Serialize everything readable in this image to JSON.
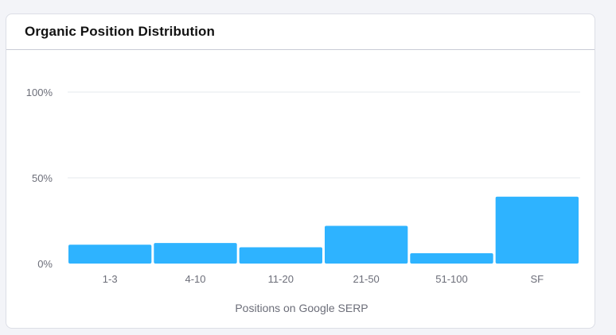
{
  "widget": {
    "title": "Organic Position Distribution"
  },
  "colors": {
    "bar": "#2eb3ff",
    "grid": "#e6e8ee",
    "tick_text": "#6c6e79",
    "axis_text": "#6c6e79"
  },
  "chart_data": {
    "type": "bar",
    "categories": [
      "1-3",
      "4-10",
      "11-20",
      "21-50",
      "51-100",
      "SF"
    ],
    "values": [
      11,
      12,
      9.5,
      22,
      6,
      39
    ],
    "y_ticks": [
      "0%",
      "50%",
      "100%"
    ],
    "ylim": [
      0,
      100
    ],
    "xlabel": "Positions on Google SERP",
    "ylabel": "",
    "grid": true
  }
}
